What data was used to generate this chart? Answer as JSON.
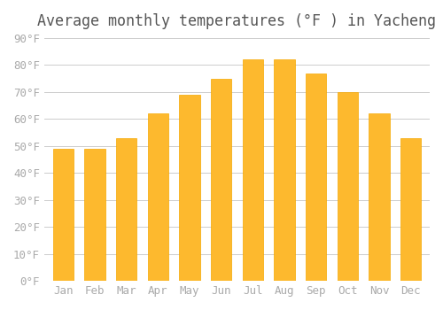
{
  "title": "Average monthly temperatures (°F ) in Yacheng",
  "months": [
    "Jan",
    "Feb",
    "Mar",
    "Apr",
    "May",
    "Jun",
    "Jul",
    "Aug",
    "Sep",
    "Oct",
    "Nov",
    "Dec"
  ],
  "values": [
    49,
    49,
    53,
    62,
    69,
    75,
    82,
    82,
    77,
    70,
    62,
    53
  ],
  "bar_color_main": "#FDB92E",
  "bar_color_edge": "#F5A800",
  "background_color": "#FFFFFF",
  "grid_color": "#CCCCCC",
  "text_color": "#AAAAAA",
  "title_color": "#555555",
  "ylim": [
    0,
    90
  ],
  "yticks": [
    0,
    10,
    20,
    30,
    40,
    50,
    60,
    70,
    80,
    90
  ],
  "ytick_labels": [
    "0°F",
    "10°F",
    "20°F",
    "30°F",
    "40°F",
    "50°F",
    "60°F",
    "70°F",
    "80°F",
    "90°F"
  ],
  "title_fontsize": 12,
  "tick_fontsize": 9
}
